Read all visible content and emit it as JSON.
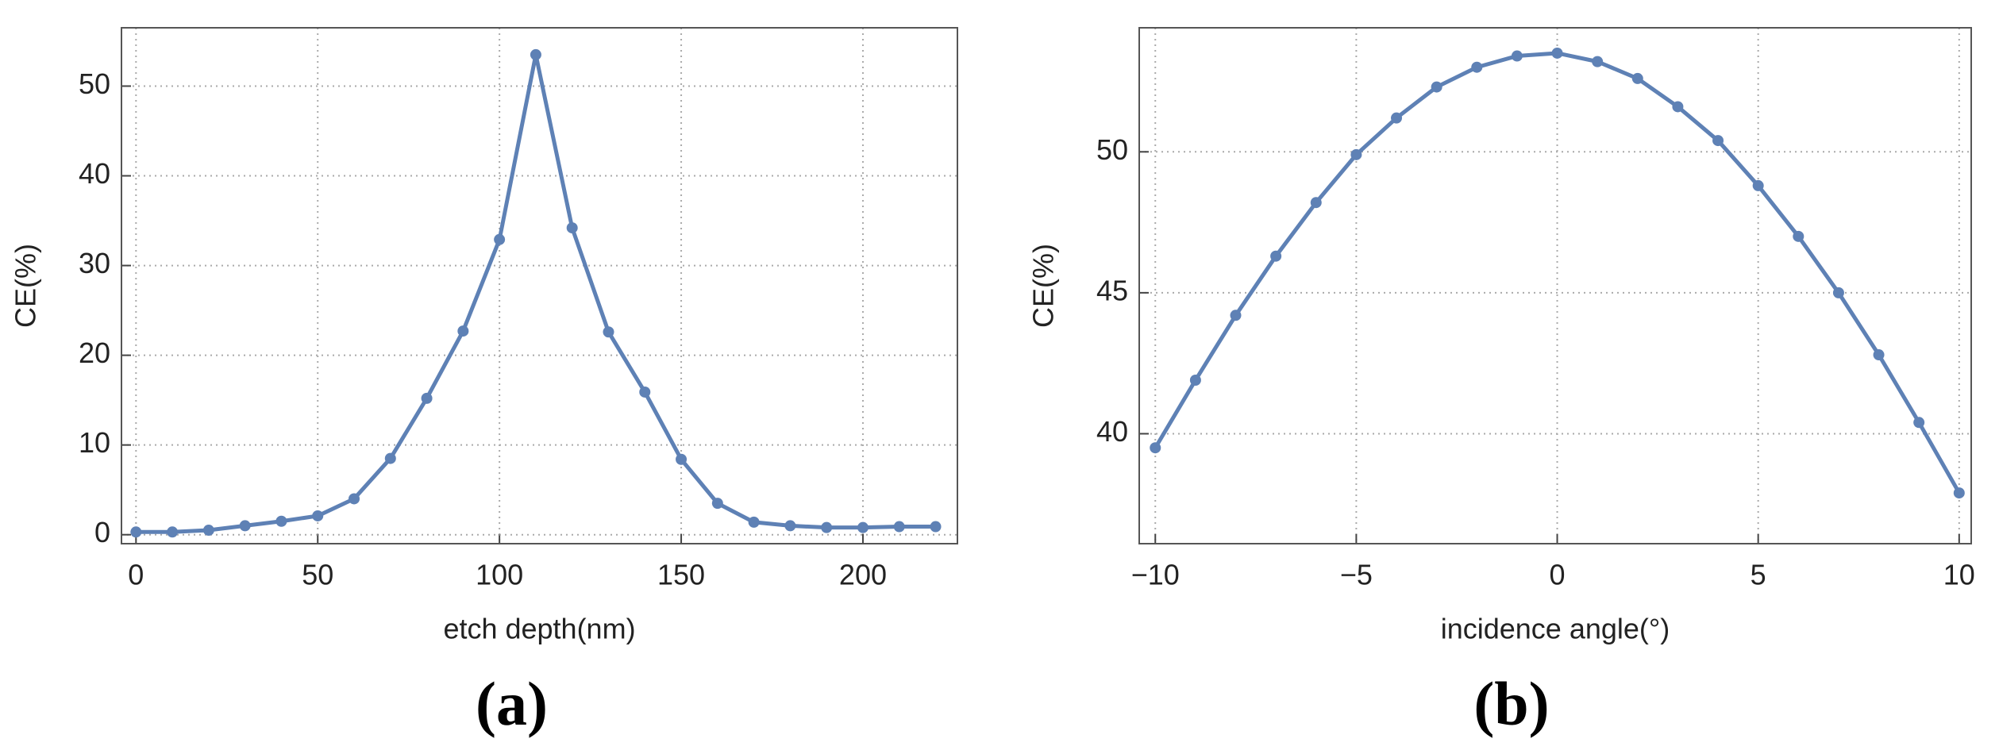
{
  "chart_data": [
    {
      "type": "line",
      "label": "(a)",
      "x_label": "etch depth(nm)",
      "y_label": "CE(%)",
      "x": [
        0,
        10,
        20,
        30,
        40,
        50,
        60,
        70,
        80,
        90,
        100,
        110,
        120,
        130,
        140,
        150,
        160,
        170,
        180,
        190,
        200,
        210,
        220
      ],
      "series": [
        {
          "color": "#5e81b5",
          "values": [
            0.3,
            0.3,
            0.5,
            1.0,
            1.5,
            2.1,
            4.0,
            8.5,
            15.2,
            22.7,
            32.9,
            53.5,
            34.2,
            22.6,
            15.9,
            8.4,
            3.5,
            1.4,
            1.0,
            0.8,
            0.8,
            0.9,
            0.9
          ]
        }
      ],
      "xlim": [
        -4,
        226
      ],
      "ylim": [
        -1,
        56.5
      ],
      "xticks": [
        0,
        50,
        100,
        150,
        200
      ],
      "yticks": [
        0,
        10,
        20,
        30,
        40,
        50
      ],
      "grid": true
    },
    {
      "type": "line",
      "label": "(b)",
      "x_label": "incidence angle(°)",
      "y_label": "CE(%)",
      "x": [
        -10,
        -9,
        -8,
        -7,
        -6,
        -5,
        -4,
        -3,
        -2,
        -1,
        0,
        1,
        2,
        3,
        4,
        5,
        6,
        7,
        8,
        9,
        10
      ],
      "series": [
        {
          "color": "#5e81b5",
          "values": [
            39.5,
            41.9,
            44.2,
            46.3,
            48.2,
            49.9,
            51.2,
            52.3,
            53.0,
            53.4,
            53.5,
            53.2,
            52.6,
            51.6,
            50.4,
            48.8,
            47.0,
            45.0,
            42.8,
            40.4,
            37.9
          ]
        }
      ],
      "xlim": [
        -10.4,
        10.3
      ],
      "ylim": [
        36.1,
        54.4
      ],
      "xticks": [
        {
          "value": -10,
          "label": "−10"
        },
        {
          "value": -5,
          "label": "−5"
        },
        0,
        5,
        10
      ],
      "yticks": [
        40,
        45,
        50
      ],
      "grid": true
    }
  ]
}
